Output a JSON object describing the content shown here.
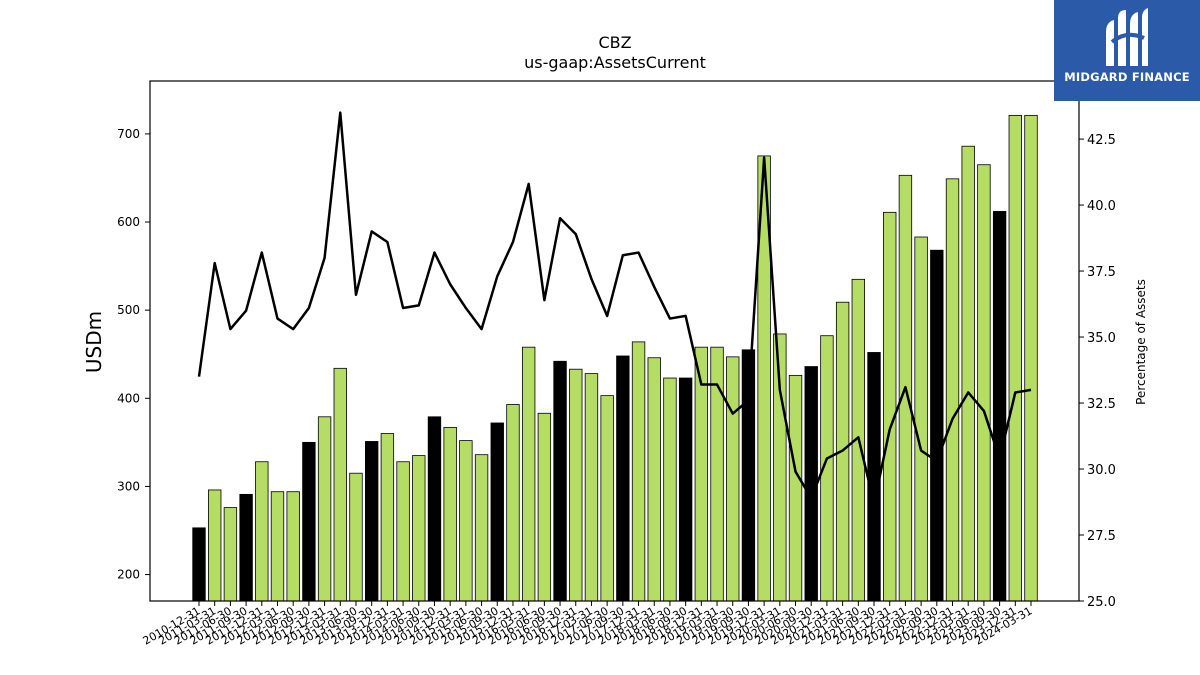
{
  "chart_data": {
    "type": "bar",
    "title": "CBZ",
    "subtitle": "us-gaap:AssetsCurrent",
    "ylabel": "USDm",
    "y2label": "Percentage of Assets",
    "ylim": [
      170,
      760
    ],
    "y2lim": [
      25.0,
      44.7
    ],
    "yticks": [
      200,
      300,
      400,
      500,
      600,
      700
    ],
    "y2ticks": [
      "25.0",
      "27.5",
      "30.0",
      "32.5",
      "35.0",
      "37.5",
      "40.0",
      "42.5"
    ],
    "categories": [
      "2010-12-31",
      "2011-03-31",
      "2011-06-30",
      "2011-09-30",
      "2011-12-31",
      "2012-03-31",
      "2012-06-30",
      "2012-09-30",
      "2012-12-31",
      "2013-03-31",
      "2013-06-30",
      "2013-09-30",
      "2013-12-31",
      "2014-03-31",
      "2014-06-30",
      "2014-09-30",
      "2014-12-31",
      "2015-03-31",
      "2015-06-30",
      "2015-09-30",
      "2015-12-31",
      "2016-03-31",
      "2016-06-30",
      "2016-09-30",
      "2016-12-31",
      "2017-03-31",
      "2017-06-30",
      "2017-09-30",
      "2017-12-31",
      "2018-03-31",
      "2018-06-30",
      "2018-09-30",
      "2018-12-31",
      "2019-03-31",
      "2019-06-30",
      "2019-09-30",
      "2019-12-31",
      "2020-03-31",
      "2020-06-30",
      "2020-09-30",
      "2020-12-31",
      "2021-03-31",
      "2021-06-30",
      "2021-09-30",
      "2021-12-31",
      "2022-03-31",
      "2022-06-30",
      "2022-09-30",
      "2022-12-31",
      "2023-03-31",
      "2023-06-30",
      "2023-09-30",
      "2023-12-31",
      "2024-03-31"
    ],
    "series": [
      {
        "type": "bar",
        "values": [
          253,
          296,
          276,
          291,
          328,
          294,
          294,
          350,
          379,
          434,
          315,
          351,
          360,
          328,
          335,
          379,
          367,
          352,
          336,
          372,
          393,
          458,
          383,
          442,
          433,
          428,
          403,
          448,
          464,
          446,
          423,
          423,
          458,
          458,
          447,
          455,
          675,
          473,
          426,
          436,
          471,
          509,
          535,
          452,
          611,
          653,
          583,
          568,
          649,
          686,
          665,
          612,
          721,
          721
        ],
        "colors": [
          "#000000",
          "#b5dd66",
          "#b5dd66",
          "#000000",
          "#b5dd66",
          "#b5dd66",
          "#b5dd66",
          "#000000",
          "#b5dd66",
          "#b5dd66",
          "#b5dd66",
          "#000000",
          "#b5dd66",
          "#b5dd66",
          "#b5dd66",
          "#000000",
          "#b5dd66",
          "#b5dd66",
          "#b5dd66",
          "#000000",
          "#b5dd66",
          "#b5dd66",
          "#b5dd66",
          "#000000",
          "#b5dd66",
          "#b5dd66",
          "#b5dd66",
          "#000000",
          "#b5dd66",
          "#b5dd66",
          "#b5dd66",
          "#000000",
          "#b5dd66",
          "#b5dd66",
          "#b5dd66",
          "#000000",
          "#b5dd66",
          "#b5dd66",
          "#b5dd66",
          "#000000",
          "#b5dd66",
          "#b5dd66",
          "#b5dd66",
          "#000000",
          "#b5dd66",
          "#b5dd66",
          "#b5dd66",
          "#000000",
          "#b5dd66",
          "#b5dd66",
          "#b5dd66",
          "#000000",
          "#b5dd66",
          "#b5dd66"
        ]
      },
      {
        "type": "line",
        "axis": "right",
        "color": "#000000",
        "values": [
          33.5,
          37.8,
          35.3,
          36.0,
          38.2,
          35.7,
          35.3,
          36.1,
          38.0,
          43.5,
          36.6,
          39.0,
          38.6,
          36.1,
          36.2,
          38.2,
          37.0,
          36.1,
          35.3,
          37.3,
          38.6,
          40.8,
          36.4,
          39.5,
          38.9,
          37.2,
          35.8,
          38.1,
          38.2,
          36.9,
          35.7,
          35.8,
          33.2,
          33.2,
          32.1,
          32.6,
          41.8,
          33.0,
          29.9,
          28.9,
          30.4,
          30.7,
          31.2,
          28.7,
          31.5,
          33.1,
          30.7,
          30.3,
          31.9,
          32.9,
          32.2,
          30.4,
          32.9,
          33.0
        ]
      }
    ]
  },
  "brand": {
    "name": "MIDGARD FINANCE",
    "bg_color": "#2b5aa8"
  }
}
